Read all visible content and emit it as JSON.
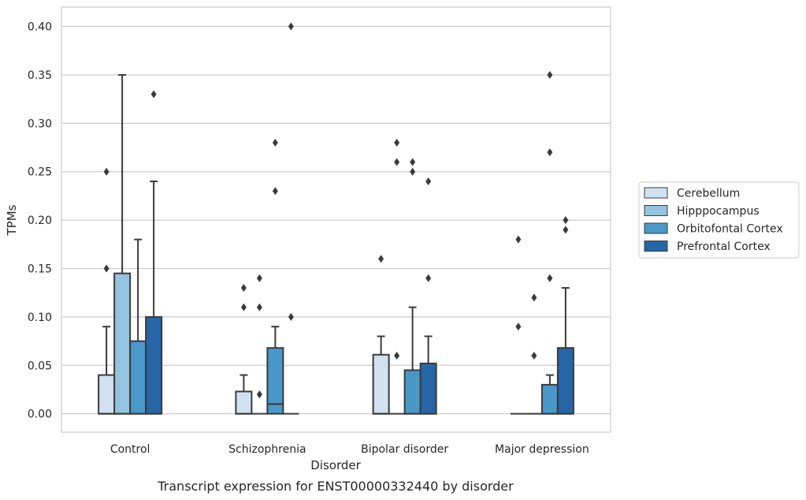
{
  "caption": "Transcript expression for ENST00000332440 by disorder",
  "chart_data": {
    "type": "box",
    "title": "",
    "xlabel": "Disorder",
    "ylabel": "TPMs",
    "ylim": [
      -0.019,
      0.42
    ],
    "yticks": [
      "0.00",
      "0.05",
      "0.10",
      "0.15",
      "0.20",
      "0.25",
      "0.30",
      "0.35",
      "0.40"
    ],
    "grid": "horizontal",
    "legend_position": "right",
    "categories": [
      "Control",
      "Schizophrenia",
      "Bipolar disorder",
      "Major depression"
    ],
    "series": [
      {
        "name": "Cerebellum",
        "color": "#d0e1f2",
        "boxes": [
          {
            "q1": 0.0,
            "median": 0.0,
            "q3": 0.04,
            "whisker_low": 0.0,
            "whisker_high": 0.09,
            "outliers": [
              0.15,
              0.25
            ]
          },
          {
            "q1": 0.0,
            "median": 0.0,
            "q3": 0.023,
            "whisker_low": 0.0,
            "whisker_high": 0.04,
            "outliers": [
              0.11,
              0.13
            ]
          },
          {
            "q1": 0.0,
            "median": 0.0,
            "q3": 0.061,
            "whisker_low": 0.0,
            "whisker_high": 0.08,
            "outliers": [
              0.16
            ]
          },
          {
            "q1": 0.0,
            "median": 0.0,
            "q3": 0.0,
            "whisker_low": 0.0,
            "whisker_high": 0.0,
            "outliers": [
              0.09,
              0.18
            ]
          }
        ]
      },
      {
        "name": "Hipppocampus",
        "color": "#94c4df",
        "boxes": [
          {
            "q1": 0.0,
            "median": 0.0,
            "q3": 0.145,
            "whisker_low": 0.0,
            "whisker_high": 0.35,
            "outliers": []
          },
          {
            "q1": 0.0,
            "median": 0.0,
            "q3": 0.0,
            "whisker_low": 0.0,
            "whisker_high": 0.0,
            "outliers": [
              0.02,
              0.11,
              0.14
            ]
          },
          {
            "q1": 0.0,
            "median": 0.0,
            "q3": 0.0,
            "whisker_low": 0.0,
            "whisker_high": 0.0,
            "outliers": [
              0.06,
              0.26,
              0.28
            ]
          },
          {
            "q1": 0.0,
            "median": 0.0,
            "q3": 0.0,
            "whisker_low": 0.0,
            "whisker_high": 0.0,
            "outliers": [
              0.06,
              0.12
            ]
          }
        ]
      },
      {
        "name": "Orbitofontal Cortex",
        "color": "#4a98c9",
        "boxes": [
          {
            "q1": 0.0,
            "median": 0.0,
            "q3": 0.075,
            "whisker_low": 0.0,
            "whisker_high": 0.18,
            "outliers": []
          },
          {
            "q1": 0.0,
            "median": 0.01,
            "q3": 0.068,
            "whisker_low": 0.0,
            "whisker_high": 0.09,
            "outliers": [
              0.23,
              0.28
            ]
          },
          {
            "q1": 0.0,
            "median": 0.0,
            "q3": 0.045,
            "whisker_low": 0.0,
            "whisker_high": 0.11,
            "outliers": [
              0.25,
              0.26
            ]
          },
          {
            "q1": 0.0,
            "median": 0.0,
            "q3": 0.03,
            "whisker_low": 0.0,
            "whisker_high": 0.04,
            "outliers": [
              0.14,
              0.27,
              0.35
            ]
          }
        ]
      },
      {
        "name": "Prefrontal Cortex",
        "color": "#2666a6",
        "boxes": [
          {
            "q1": 0.0,
            "median": 0.0,
            "q3": 0.1,
            "whisker_low": 0.0,
            "whisker_high": 0.24,
            "outliers": [
              0.33
            ]
          },
          {
            "q1": 0.0,
            "median": 0.0,
            "q3": 0.0,
            "whisker_low": 0.0,
            "whisker_high": 0.0,
            "outliers": [
              0.1,
              0.4
            ]
          },
          {
            "q1": 0.0,
            "median": 0.0,
            "q3": 0.052,
            "whisker_low": 0.0,
            "whisker_high": 0.08,
            "outliers": [
              0.14,
              0.24
            ]
          },
          {
            "q1": 0.0,
            "median": 0.0,
            "q3": 0.068,
            "whisker_low": 0.0,
            "whisker_high": 0.13,
            "outliers": [
              0.19,
              0.2
            ]
          }
        ]
      }
    ]
  }
}
